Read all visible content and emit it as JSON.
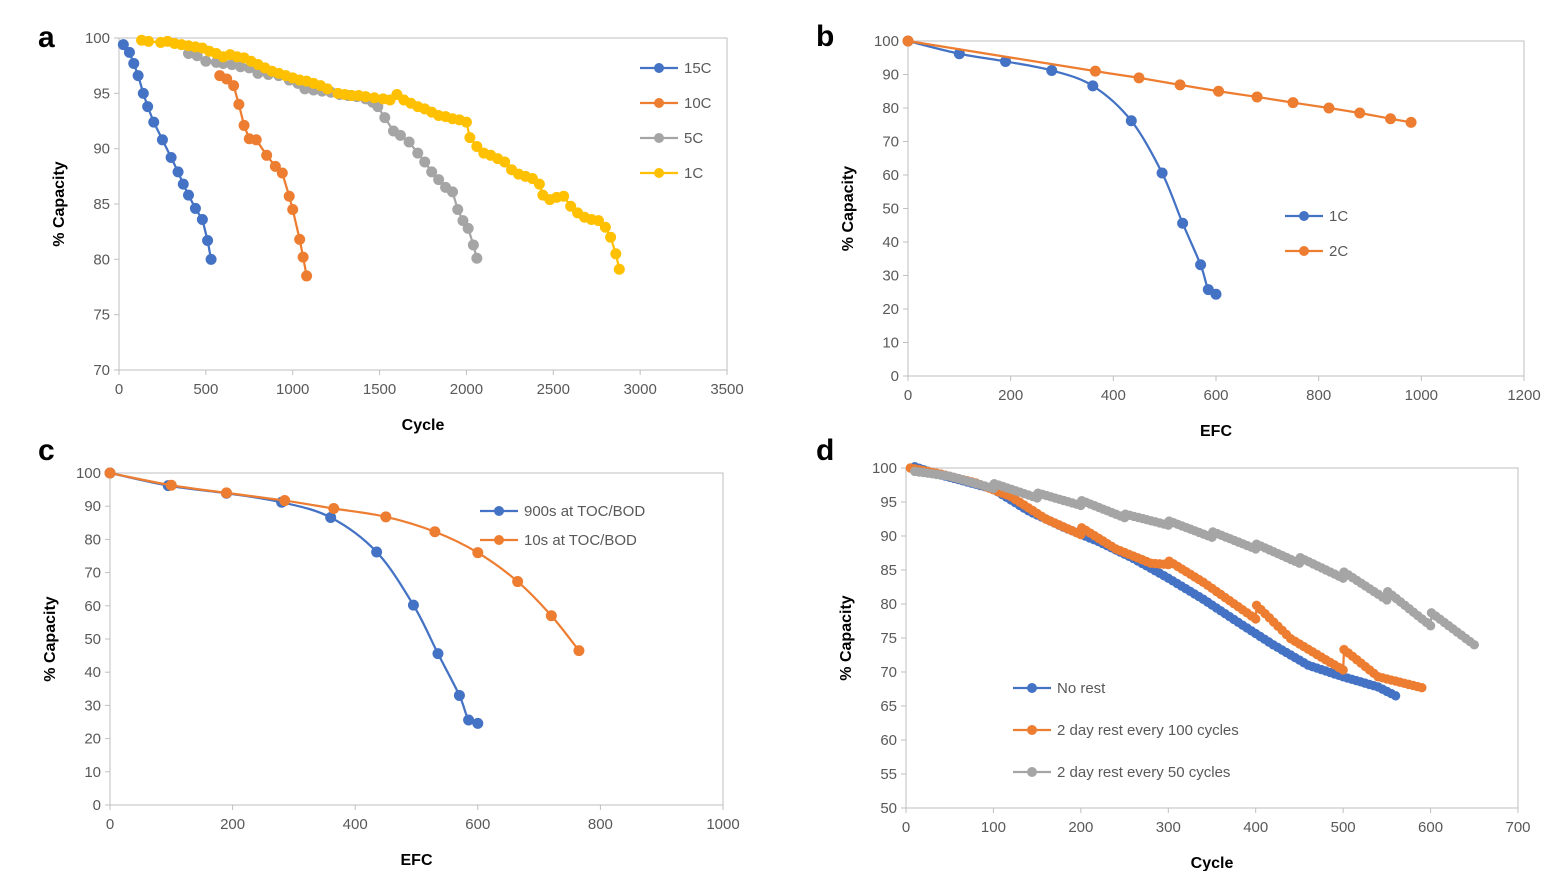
{
  "chart_data": [
    {
      "panel": "a",
      "type": "line",
      "xlabel": "Cycle",
      "ylabel": "% Capacity",
      "xlim": [
        0,
        3500
      ],
      "ylim": [
        70,
        100
      ],
      "xticks": [
        "0",
        "500",
        "1000",
        "1500",
        "2000",
        "2500",
        "3000",
        "3500"
      ],
      "yticks": [
        "70",
        "75",
        "80",
        "85",
        "90",
        "95",
        "100"
      ],
      "legend_position": "right-top",
      "series": [
        {
          "name": "15C",
          "color": "#4472C4",
          "smooth": false,
          "x": [
            25,
            60,
            85,
            110,
            140,
            165,
            200,
            250,
            300,
            340,
            370,
            400,
            440,
            480,
            510,
            530
          ],
          "y": [
            99.4,
            98.7,
            97.7,
            96.6,
            95.0,
            93.8,
            92.4,
            90.8,
            89.2,
            87.9,
            86.8,
            85.8,
            84.6,
            83.6,
            81.7,
            80.0
          ]
        },
        {
          "name": "10C",
          "color": "#ED7D31",
          "smooth": false,
          "x": [
            580,
            620,
            660,
            690,
            720,
            750,
            790,
            850,
            900,
            940,
            980,
            1000,
            1040,
            1060,
            1080
          ],
          "y": [
            96.6,
            96.3,
            95.7,
            94.0,
            92.1,
            90.9,
            90.8,
            89.4,
            88.4,
            87.8,
            85.7,
            84.5,
            81.8,
            80.2,
            78.5
          ]
        },
        {
          "name": "5C",
          "color": "#A5A5A5",
          "smooth": false,
          "x": [
            400,
            450,
            500,
            560,
            600,
            650,
            700,
            750,
            800,
            860,
            920,
            980,
            1030,
            1070,
            1120,
            1170,
            1220,
            1270,
            1320,
            1370,
            1420,
            1460,
            1490,
            1530,
            1580,
            1620,
            1670,
            1720,
            1760,
            1800,
            1840,
            1880,
            1920,
            1950,
            1980,
            2010,
            2040,
            2060
          ],
          "y": [
            98.6,
            98.4,
            97.9,
            97.8,
            97.7,
            97.6,
            97.4,
            97.3,
            96.8,
            96.7,
            96.6,
            96.2,
            95.9,
            95.4,
            95.3,
            95.2,
            95.1,
            94.9,
            94.8,
            94.7,
            94.5,
            94.2,
            93.8,
            92.8,
            91.6,
            91.2,
            90.6,
            89.6,
            88.8,
            87.9,
            87.2,
            86.5,
            86.1,
            84.5,
            83.5,
            82.8,
            81.3,
            80.1
          ]
        },
        {
          "name": "1C",
          "color": "#FFC000",
          "smooth": false,
          "x": [
            130,
            170,
            240,
            280,
            320,
            360,
            400,
            440,
            480,
            520,
            560,
            600,
            640,
            680,
            720,
            760,
            800,
            840,
            880,
            920,
            960,
            1000,
            1040,
            1080,
            1120,
            1160,
            1200,
            1260,
            1300,
            1340,
            1380,
            1420,
            1470,
            1520,
            1560,
            1600,
            1640,
            1680,
            1720,
            1760,
            1800,
            1840,
            1880,
            1920,
            1960,
            2000,
            2020,
            2060,
            2100,
            2140,
            2180,
            2220,
            2260,
            2300,
            2340,
            2380,
            2420,
            2440,
            2480,
            2520,
            2560,
            2600,
            2640,
            2680,
            2720,
            2760,
            2800,
            2830,
            2860,
            2880
          ],
          "y": [
            99.8,
            99.7,
            99.6,
            99.7,
            99.5,
            99.4,
            99.3,
            99.2,
            99.1,
            98.8,
            98.6,
            98.3,
            98.5,
            98.3,
            98.2,
            97.9,
            97.6,
            97.3,
            97.0,
            96.8,
            96.6,
            96.4,
            96.2,
            96.1,
            95.9,
            95.7,
            95.4,
            95.0,
            94.9,
            94.8,
            94.8,
            94.7,
            94.6,
            94.5,
            94.4,
            94.9,
            94.4,
            94.1,
            93.8,
            93.6,
            93.3,
            93.0,
            92.9,
            92.7,
            92.6,
            92.4,
            91.0,
            90.2,
            89.6,
            89.4,
            89.1,
            88.8,
            88.1,
            87.7,
            87.5,
            87.3,
            86.8,
            85.8,
            85.4,
            85.6,
            85.7,
            84.8,
            84.2,
            83.8,
            83.6,
            83.5,
            82.9,
            82.0,
            80.5,
            79.1
          ]
        }
      ]
    },
    {
      "panel": "b",
      "type": "line",
      "xlabel": "EFC",
      "ylabel": "% Capacity",
      "xlim": [
        0,
        1200
      ],
      "ylim": [
        0,
        100
      ],
      "xticks": [
        "0",
        "200",
        "400",
        "600",
        "800",
        "1000",
        "1200"
      ],
      "yticks": [
        "0",
        "10",
        "20",
        "30",
        "40",
        "50",
        "60",
        "70",
        "80",
        "90",
        "100"
      ],
      "legend_position": "middle-right",
      "series": [
        {
          "name": "1C",
          "color": "#4472C4",
          "smooth": true,
          "x": [
            0,
            100,
            190,
            280,
            360,
            435,
            495,
            535,
            570,
            585,
            600
          ],
          "y": [
            100,
            96.2,
            93.9,
            91.2,
            86.6,
            76.2,
            60.6,
            45.6,
            33.2,
            25.8,
            24.4
          ]
        },
        {
          "name": "2C",
          "color": "#ED7D31",
          "smooth": true,
          "x": [
            0,
            365,
            450,
            530,
            605,
            680,
            750,
            820,
            880,
            940,
            980
          ],
          "y": [
            100,
            91.0,
            89.0,
            86.9,
            85.0,
            83.3,
            81.6,
            80.0,
            78.5,
            76.8,
            75.7
          ]
        }
      ]
    },
    {
      "panel": "c",
      "type": "line",
      "xlabel": "EFC",
      "ylabel": "% Capacity",
      "xlim": [
        0,
        1000
      ],
      "ylim": [
        0,
        100
      ],
      "xticks": [
        "0",
        "200",
        "400",
        "600",
        "800",
        "1000"
      ],
      "yticks": [
        "0",
        "10",
        "20",
        "30",
        "40",
        "50",
        "60",
        "70",
        "80",
        "90",
        "100"
      ],
      "legend_position": "top-right",
      "series": [
        {
          "name": "900s at TOC/BOD",
          "color": "#4472C4",
          "smooth": true,
          "x": [
            0,
            95,
            190,
            280,
            360,
            435,
            495,
            535,
            570,
            585,
            600
          ],
          "y": [
            100,
            96.2,
            93.9,
            91.2,
            86.6,
            76.2,
            60.2,
            45.6,
            33.0,
            25.6,
            24.6
          ]
        },
        {
          "name": "10s at TOC/BOD",
          "color": "#ED7D31",
          "smooth": true,
          "x": [
            0,
            100,
            190,
            285,
            365,
            450,
            530,
            600,
            665,
            720,
            765
          ],
          "y": [
            100,
            96.3,
            94.0,
            91.7,
            89.3,
            86.8,
            82.3,
            76.0,
            67.3,
            57.0,
            46.5
          ]
        }
      ]
    },
    {
      "panel": "d",
      "type": "line",
      "xlabel": "Cycle",
      "ylabel": "% Capacity",
      "xlim": [
        0,
        700
      ],
      "ylim": [
        50,
        100
      ],
      "xticks": [
        "0",
        "100",
        "200",
        "300",
        "400",
        "500",
        "600",
        "700"
      ],
      "yticks": [
        "50",
        "55",
        "60",
        "65",
        "70",
        "75",
        "80",
        "85",
        "90",
        "95",
        "100"
      ],
      "legend_position": "bottom-left",
      "series": [
        {
          "name": "No rest",
          "color": "#4472C4",
          "smooth": false,
          "dense": true,
          "x": [
            10,
            30,
            60,
            100,
            140,
            180,
            220,
            260,
            300,
            340,
            380,
            420,
            460,
            500,
            540,
            560
          ],
          "y": [
            100.2,
            99.3,
            98.3,
            96.9,
            93.7,
            91.3,
            89.2,
            86.7,
            83.8,
            80.7,
            77.3,
            74.0,
            71.0,
            69.3,
            67.8,
            66.5
          ]
        },
        {
          "name": "2 day rest every 100 cycles",
          "color": "#ED7D31",
          "smooth": false,
          "dense": true,
          "x": [
            5,
            40,
            80,
            100,
            120,
            160,
            200,
            201,
            240,
            280,
            300,
            301,
            340,
            380,
            400,
            401,
            440,
            480,
            500,
            501,
            540,
            590
          ],
          "y": [
            100.0,
            99.1,
            97.8,
            96.8,
            95.8,
            92.5,
            90.2,
            91.2,
            88.1,
            86.0,
            85.8,
            86.3,
            83.2,
            79.6,
            77.8,
            79.8,
            74.9,
            71.8,
            70.3,
            73.3,
            69.3,
            67.7
          ]
        },
        {
          "name": "2 day rest every 50 cycles",
          "color": "#A5A5A5",
          "smooth": false,
          "dense": true,
          "x": [
            10,
            50,
            100,
            101,
            150,
            151,
            200,
            201,
            250,
            251,
            300,
            301,
            350,
            351,
            400,
            401,
            450,
            451,
            500,
            501,
            550,
            551,
            600,
            601,
            650
          ],
          "y": [
            99.5,
            98.8,
            97.0,
            97.7,
            95.6,
            96.3,
            94.5,
            95.2,
            92.7,
            93.2,
            91.6,
            92.2,
            89.8,
            90.6,
            88.1,
            88.8,
            86.0,
            86.8,
            83.8,
            84.7,
            80.6,
            81.8,
            76.8,
            78.7,
            74.0
          ]
        }
      ]
    }
  ],
  "panels": [
    {
      "label": "a",
      "xlabel": "Cycle",
      "ylabel": "% Capacity"
    },
    {
      "label": "b",
      "xlabel": "EFC",
      "ylabel": "% Capacity"
    },
    {
      "label": "c",
      "xlabel": "EFC",
      "ylabel": "% Capacity"
    },
    {
      "label": "d",
      "xlabel": "Cycle",
      "ylabel": "% Capacity"
    }
  ]
}
